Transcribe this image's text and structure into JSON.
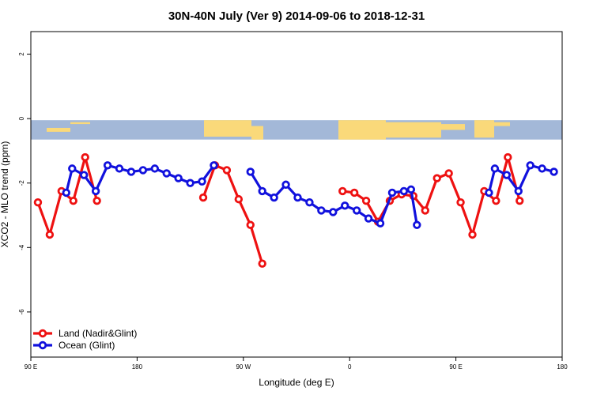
{
  "chart_data": {
    "type": "line",
    "title": "30N-40N July (Ver 9)   2014-09-06 to 2018-12-31",
    "xlabel": "Longitude (deg E)",
    "ylabel": "XCO2 - MLO trend (ppm)",
    "xlim": [
      90,
      540
    ],
    "ylim": [
      -7.4,
      2.7
    ],
    "x_ticks": [
      {
        "value": 90,
        "label": "90 E"
      },
      {
        "value": 180,
        "label": "180"
      },
      {
        "value": 270,
        "label": "90 W"
      },
      {
        "value": 360,
        "label": "0"
      },
      {
        "value": 450,
        "label": "90 E"
      },
      {
        "value": 540,
        "label": "180"
      }
    ],
    "y_ticks": [
      {
        "value": 2,
        "label": "2"
      },
      {
        "value": 0,
        "label": "0"
      },
      {
        "value": -2,
        "label": "-2"
      },
      {
        "value": -4,
        "label": "-4"
      },
      {
        "value": -6,
        "label": "-6"
      }
    ],
    "map_band": {
      "ymin": -0.65,
      "ymax": -0.05,
      "ocean_color": "#a3b8d8",
      "land_color": "#fad97a"
    },
    "legend_position": "bottom-left",
    "series": [
      {
        "name": "Land (Nadir&Glint)",
        "color": "#ee1111",
        "segments": [
          [
            [
              96,
              -2.6
            ],
            [
              106,
              -3.6
            ],
            [
              116,
              -2.25
            ],
            [
              126,
              -2.55
            ],
            [
              136,
              -1.2
            ],
            [
              146,
              -2.55
            ]
          ],
          [
            [
              236,
              -2.45
            ],
            [
              246,
              -1.45
            ],
            [
              256,
              -1.6
            ],
            [
              266,
              -2.5
            ],
            [
              276,
              -3.3
            ],
            [
              286,
              -4.5
            ]
          ],
          [
            [
              354,
              -2.25
            ],
            [
              364,
              -2.3
            ],
            [
              374,
              -2.55
            ],
            [
              384,
              -3.2
            ],
            [
              394,
              -2.55
            ],
            [
              404,
              -2.35
            ],
            [
              414,
              -2.4
            ],
            [
              424,
              -2.85
            ],
            [
              434,
              -1.85
            ],
            [
              444,
              -1.7
            ],
            [
              454,
              -2.6
            ],
            [
              464,
              -3.6
            ],
            [
              474,
              -2.25
            ],
            [
              484,
              -2.55
            ],
            [
              494,
              -1.2
            ],
            [
              504,
              -2.55
            ]
          ]
        ]
      },
      {
        "name": "Ocean (Glint)",
        "color": "#1111dd",
        "segments": [
          [
            [
              120,
              -2.3
            ],
            [
              125,
              -1.55
            ],
            [
              135,
              -1.75
            ],
            [
              145,
              -2.25
            ],
            [
              155,
              -1.45
            ],
            [
              165,
              -1.55
            ],
            [
              175,
              -1.65
            ],
            [
              185,
              -1.6
            ],
            [
              195,
              -1.55
            ],
            [
              205,
              -1.7
            ],
            [
              215,
              -1.85
            ],
            [
              225,
              -2.0
            ],
            [
              235,
              -1.95
            ],
            [
              245,
              -1.45
            ]
          ],
          [
            [
              276,
              -1.65
            ],
            [
              286,
              -2.25
            ],
            [
              296,
              -2.45
            ],
            [
              306,
              -2.05
            ],
            [
              316,
              -2.45
            ],
            [
              326,
              -2.6
            ],
            [
              336,
              -2.85
            ],
            [
              346,
              -2.9
            ],
            [
              356,
              -2.7
            ],
            [
              366,
              -2.85
            ],
            [
              376,
              -3.1
            ],
            [
              386,
              -3.25
            ],
            [
              396,
              -2.3
            ],
            [
              406,
              -2.25
            ],
            [
              412,
              -2.2
            ],
            [
              417,
              -3.3
            ]
          ],
          [
            [
              478,
              -2.3
            ],
            [
              483,
              -1.55
            ],
            [
              493,
              -1.75
            ],
            [
              503,
              -2.25
            ],
            [
              513,
              -1.45
            ],
            [
              523,
              -1.55
            ],
            [
              533,
              -1.65
            ]
          ]
        ]
      }
    ]
  }
}
